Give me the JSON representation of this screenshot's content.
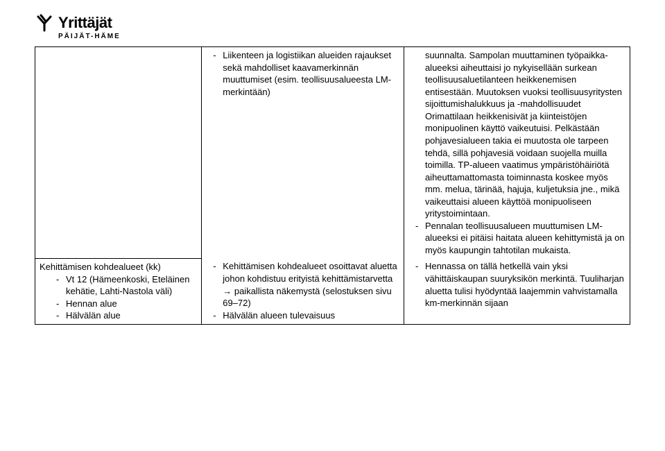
{
  "logo": {
    "name": "Yrittäjät",
    "region": "PÄIJÄT-HÄME",
    "name_fontsize": 22,
    "sub_fontsize": 10,
    "color": "#000000"
  },
  "table": {
    "border_color": "#000000",
    "row1": {
      "col2_items": [
        "Liikenteen ja logistiikan alueiden rajaukset sekä mahdolliset kaavamerkinnän muuttumiset (esim. teollisuusalueesta LM-merkintään)"
      ],
      "col3_prefix": "suunnalta. Sampolan muuttaminen työpaikka-alueeksi aiheuttaisi jo nykyisellään surkean teollisuusaluetilanteen heikkenemisen entisestään. Muutoksen vuoksi teollisuusyritysten sijoittumishalukkuus ja -mahdollisuudet Orimattilaan heikkenisivät ja kiinteistöjen monipuolinen käyttö vaikeutuisi. Pelkästään pohjavesialueen takia ei muutosta ole tarpeen tehdä, sillä pohjavesiä voidaan suojella muilla toimilla. TP-alueen vaatimus ympäristöhäiriötä aiheuttamattomasta toiminnasta koskee myös mm. melua, tärinää, hajuja, kuljetuksia jne., mikä vaikeuttaisi alueen käyttöä monipuoliseen yritystoimintaan.",
      "col3_item2": "Pennalan teollisuusalueen muuttumisen LM-alueeksi ei pitäisi haitata alueen kehittymistä ja on myös kaupungin tahtotilan mukaista."
    },
    "row2": {
      "col1_heading": "Kehittämisen kohdealueet (kk)",
      "col1_items": [
        "Vt 12 (Hämeenkoski, Eteläinen kehätie, Lahti-Nastola väli)",
        "Hennan alue",
        "Hälvälän alue"
      ],
      "col2_items": [
        "Kehittämisen kohdealueet osoittavat aluetta johon kohdistuu erityistä kehittämistarvetta → paikallista näkemystä (selostuksen sivu 69–72)",
        "Hälvälän alueen tulevaisuus"
      ],
      "col3_items": [
        "Hennassa on tällä hetkellä vain yksi vähittäiskaupan suuryksikön merkintä. Tuuliharjan aluetta tulisi hyödyntää laajemmin vahvistamalla km-merkinnän sijaan"
      ]
    }
  }
}
